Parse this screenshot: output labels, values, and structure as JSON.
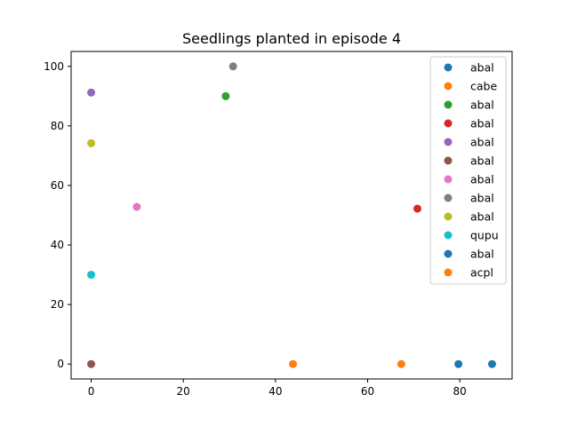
{
  "chart_data": {
    "type": "scatter",
    "title": "Seedlings planted in episode 4",
    "xlabel": "",
    "ylabel": "",
    "xlim": [
      -4.35,
      91.35
    ],
    "ylim": [
      -5,
      105
    ],
    "xticks": [
      0,
      20,
      40,
      60,
      80
    ],
    "yticks": [
      0,
      20,
      40,
      60,
      80,
      100
    ],
    "grid": false,
    "legend_position": "top-right",
    "series": [
      {
        "name": "abal",
        "color": "#1f77b4",
        "points": [
          [
            87.0,
            0.0
          ]
        ]
      },
      {
        "name": "cabe",
        "color": "#ff7f0e",
        "points": [
          [
            67.3,
            0.0
          ]
        ]
      },
      {
        "name": "abal",
        "color": "#2ca02c",
        "points": [
          [
            29.2,
            90.0
          ]
        ]
      },
      {
        "name": "abal",
        "color": "#d62728",
        "points": [
          [
            70.8,
            52.2
          ]
        ]
      },
      {
        "name": "abal",
        "color": "#9467bd",
        "points": [
          [
            0.0,
            91.2
          ]
        ]
      },
      {
        "name": "abal",
        "color": "#8c564b",
        "points": [
          [
            0.0,
            0.0
          ]
        ]
      },
      {
        "name": "abal",
        "color": "#e377c2",
        "points": [
          [
            9.9,
            52.8
          ]
        ]
      },
      {
        "name": "abal",
        "color": "#7f7f7f",
        "points": [
          [
            30.8,
            100.0
          ]
        ]
      },
      {
        "name": "abal",
        "color": "#bcbd22",
        "points": [
          [
            0.0,
            74.2
          ]
        ]
      },
      {
        "name": "qupu",
        "color": "#17becf",
        "points": [
          [
            0.0,
            30.0
          ]
        ]
      },
      {
        "name": "abal",
        "color": "#1f77b4",
        "points": [
          [
            79.7,
            0.0
          ]
        ]
      },
      {
        "name": "acpl",
        "color": "#ff7f0e",
        "points": [
          [
            43.8,
            0.0
          ]
        ]
      }
    ]
  }
}
